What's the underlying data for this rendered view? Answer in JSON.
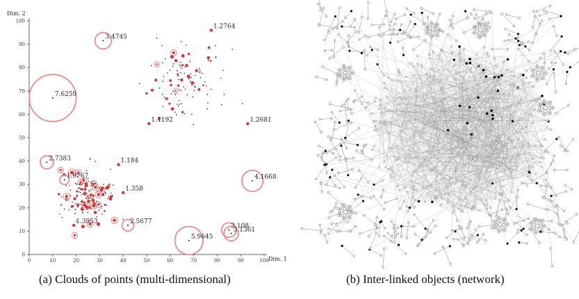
{
  "captions": {
    "a": "(a) Clouds of points (multi-dimensional)",
    "b": "(b) Inter-linked objects (network)"
  },
  "colors": {
    "marked": "#e03030",
    "circle": "#f08080",
    "point": "#222222",
    "edge": "#8a8a8a"
  },
  "chart_data": [
    {
      "type": "scatter",
      "xlabel": "Dim. 1",
      "ylabel": "Dim. 2",
      "xlim": [
        0,
        100
      ],
      "ylim": [
        0,
        100
      ],
      "xticks": [
        0,
        10,
        20,
        30,
        40,
        50,
        60,
        70,
        80,
        90,
        100
      ],
      "yticks": [
        0,
        10,
        20,
        30,
        40,
        50,
        60,
        70,
        80,
        90,
        100
      ],
      "grid": false,
      "annotations": [
        {
          "label": "3.4745",
          "x": 31.5,
          "y": 91.5,
          "r": 3.5
        },
        {
          "label": "1.2764",
          "x": 77.5,
          "y": 96,
          "r": 0
        },
        {
          "label": "7.6259",
          "x": 10,
          "y": 67,
          "r": 10
        },
        {
          "label": "1.4192",
          "x": 51,
          "y": 56,
          "r": 0
        },
        {
          "label": "1.2681",
          "x": 93,
          "y": 56,
          "r": 0
        },
        {
          "label": "2.7383",
          "x": 7.5,
          "y": 39.5,
          "r": 2.8
        },
        {
          "label": "1.184",
          "x": 38,
          "y": 38.5,
          "r": 0
        },
        {
          "label": "1.9767",
          "x": 15,
          "y": 32,
          "r": 2
        },
        {
          "label": "4.1668",
          "x": 95,
          "y": 31.5,
          "r": 4.5
        },
        {
          "label": "1.358",
          "x": 40,
          "y": 26.5,
          "r": 0
        },
        {
          "label": "2.5677",
          "x": 42,
          "y": 12.5,
          "r": 2.5
        },
        {
          "label": "3.108",
          "x": 85,
          "y": 10.5,
          "r": 3.1
        },
        {
          "label": "3.1361",
          "x": 86,
          "y": 9,
          "r": 3.1
        },
        {
          "label": "5.9645",
          "x": 68,
          "y": 6,
          "r": 6
        },
        {
          "label": "1.3953",
          "x": 19,
          "y": 12.5,
          "r": 0
        }
      ],
      "clusters": [
        {
          "name": "upper-right",
          "cx": 67,
          "cy": 73,
          "sx": 15,
          "sy": 14,
          "n": 110
        },
        {
          "name": "lower-left",
          "cx": 25,
          "cy": 25,
          "sx": 10,
          "sy": 9,
          "n": 170
        }
      ]
    },
    {
      "type": "network",
      "dense_core": {
        "cx": 0.55,
        "cy": 0.5,
        "r": 0.35
      },
      "cliques": 8
    }
  ]
}
